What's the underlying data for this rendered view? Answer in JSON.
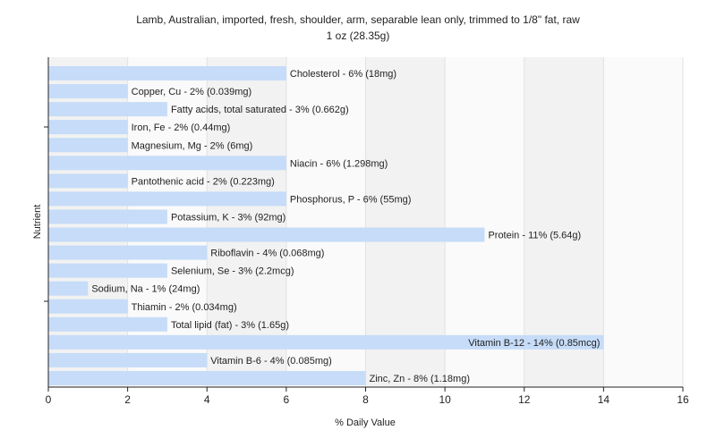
{
  "chart_data": {
    "type": "bar",
    "orientation": "horizontal",
    "title": "Lamb, Australian, imported, fresh, shoulder, arm, separable lean only, trimmed to 1/8\" fat, raw",
    "subtitle": "1 oz (28.35g)",
    "xlabel": "% Daily Value",
    "ylabel": "Nutrient",
    "xlim": [
      0,
      16
    ],
    "xticks": [
      0,
      2,
      4,
      6,
      8,
      10,
      12,
      14,
      16
    ],
    "grid": true,
    "bar_color": "#c6dcf8",
    "categories": [
      "Cholesterol",
      "Copper, Cu",
      "Fatty acids, total saturated",
      "Iron, Fe",
      "Magnesium, Mg",
      "Niacin",
      "Pantothenic acid",
      "Phosphorus, P",
      "Potassium, K",
      "Protein",
      "Riboflavin",
      "Selenium, Se",
      "Sodium, Na",
      "Thiamin",
      "Total lipid (fat)",
      "Vitamin B-12",
      "Vitamin B-6",
      "Zinc, Zn"
    ],
    "values": [
      6,
      2,
      3,
      2,
      2,
      6,
      2,
      6,
      3,
      11,
      4,
      3,
      1,
      2,
      3,
      14,
      4,
      8
    ],
    "labels": [
      "Cholesterol - 6% (18mg)",
      "Copper, Cu - 2% (0.039mg)",
      "Fatty acids, total saturated - 3% (0.662g)",
      "Iron, Fe - 2% (0.44mg)",
      "Magnesium, Mg - 2% (6mg)",
      "Niacin - 6% (1.298mg)",
      "Pantothenic acid - 2% (0.223mg)",
      "Phosphorus, P - 6% (55mg)",
      "Potassium, K - 3% (92mg)",
      "Protein - 11% (5.64g)",
      "Riboflavin - 4% (0.068mg)",
      "Selenium, Se - 3% (2.2mcg)",
      "Sodium, Na - 1% (24mg)",
      "Thiamin - 2% (0.034mg)",
      "Total lipid (fat) - 3% (1.65g)",
      "Vitamin B-12 - 14% (0.85mcg)",
      "Vitamin B-6 - 4% (0.085mg)",
      "Zinc, Zn - 8% (1.18mg)"
    ]
  }
}
